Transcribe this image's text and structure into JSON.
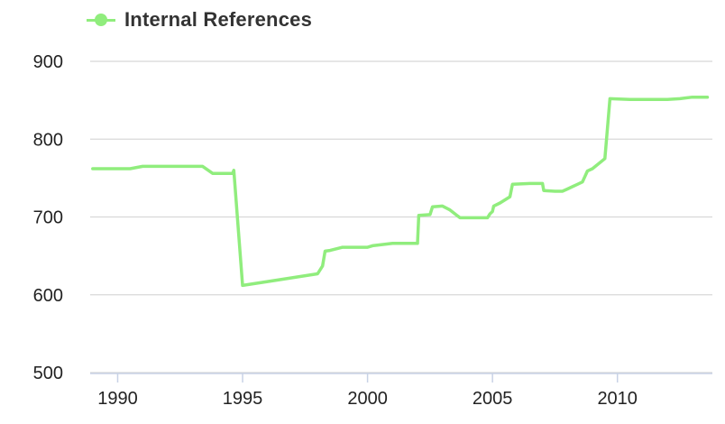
{
  "chart_data": {
    "type": "line",
    "title": "",
    "xlabel": "",
    "ylabel": "",
    "xlim": [
      1988.9,
      2013.8
    ],
    "ylim": [
      500,
      900
    ],
    "x_ticks": [
      "1990",
      "1995",
      "2000",
      "2005",
      "2010"
    ],
    "y_ticks": [
      "500",
      "600",
      "700",
      "800",
      "900"
    ],
    "grid": true,
    "legend": "top-left",
    "series": [
      {
        "name": "Internal References",
        "color": "#90ed7d",
        "points": [
          [
            1989.0,
            762
          ],
          [
            1990.5,
            762
          ],
          [
            1991.0,
            765
          ],
          [
            1992.0,
            765
          ],
          [
            1993.4,
            765
          ],
          [
            1993.8,
            756
          ],
          [
            1994.6,
            756
          ],
          [
            1994.65,
            760
          ],
          [
            1995.0,
            612
          ],
          [
            1996.0,
            617
          ],
          [
            1998.0,
            627
          ],
          [
            1998.2,
            637
          ],
          [
            1998.3,
            656
          ],
          [
            1998.5,
            657
          ],
          [
            1999.0,
            661
          ],
          [
            2000.0,
            661
          ],
          [
            2000.2,
            663
          ],
          [
            2001.0,
            666
          ],
          [
            2002.0,
            666
          ],
          [
            2002.05,
            702
          ],
          [
            2002.5,
            703
          ],
          [
            2002.6,
            713
          ],
          [
            2003.0,
            714
          ],
          [
            2003.3,
            709
          ],
          [
            2003.7,
            699
          ],
          [
            2004.0,
            699
          ],
          [
            2004.8,
            699
          ],
          [
            2004.9,
            704
          ],
          [
            2005.0,
            707
          ],
          [
            2005.05,
            714
          ],
          [
            2005.3,
            718
          ],
          [
            2005.7,
            726
          ],
          [
            2005.8,
            742
          ],
          [
            2006.5,
            743
          ],
          [
            2007.0,
            743
          ],
          [
            2007.05,
            734
          ],
          [
            2007.5,
            733
          ],
          [
            2007.8,
            733
          ],
          [
            2008.0,
            736
          ],
          [
            2008.4,
            742
          ],
          [
            2008.6,
            745
          ],
          [
            2008.8,
            759
          ],
          [
            2009.0,
            762
          ],
          [
            2009.5,
            775
          ],
          [
            2009.7,
            852
          ],
          [
            2010.5,
            851
          ],
          [
            2012.0,
            851
          ],
          [
            2012.5,
            852
          ],
          [
            2013.0,
            854
          ],
          [
            2013.6,
            854
          ]
        ]
      }
    ]
  }
}
